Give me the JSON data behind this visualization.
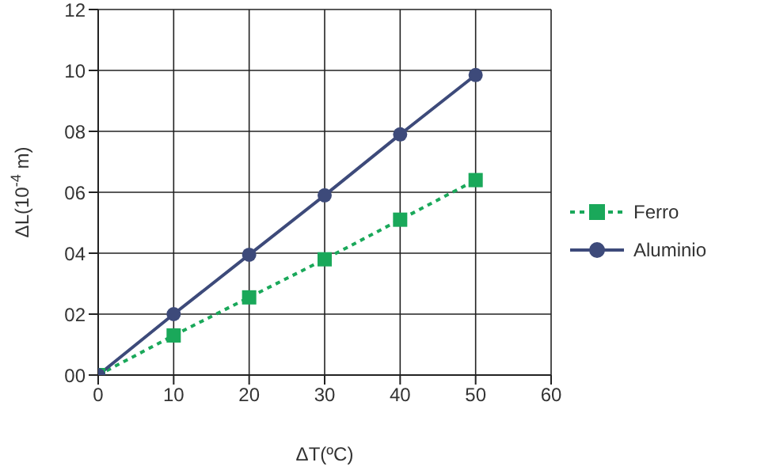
{
  "chart_data": {
    "type": "line",
    "xlabel": "ΔT(ºC)",
    "ylabel": "ΔL(10$^{-4}$ m)",
    "x": [
      0,
      10,
      20,
      30,
      40,
      50
    ],
    "series": [
      {
        "name": "Ferro",
        "color": "#1aa85a",
        "values": [
          0,
          1.3,
          2.55,
          3.8,
          5.1,
          6.4
        ],
        "marker": "square",
        "line_style": "dotted"
      },
      {
        "name": "Aluminio",
        "color": "#3d4a7a",
        "values": [
          0,
          2,
          3.95,
          5.9,
          7.9,
          9.85
        ],
        "marker": "circle",
        "line_style": "solid"
      }
    ],
    "xlim": [
      0,
      60
    ],
    "xticks": [
      0,
      10,
      20,
      30,
      40,
      50,
      60
    ],
    "ylim": [
      0,
      12
    ],
    "yticks": [
      {
        "value": 0,
        "label": "00"
      },
      {
        "value": 2,
        "label": "02"
      },
      {
        "value": 4,
        "label": "04"
      },
      {
        "value": 6,
        "label": "06"
      },
      {
        "value": 8,
        "label": "08"
      },
      10,
      12
    ],
    "grid": true,
    "legend": "right"
  }
}
